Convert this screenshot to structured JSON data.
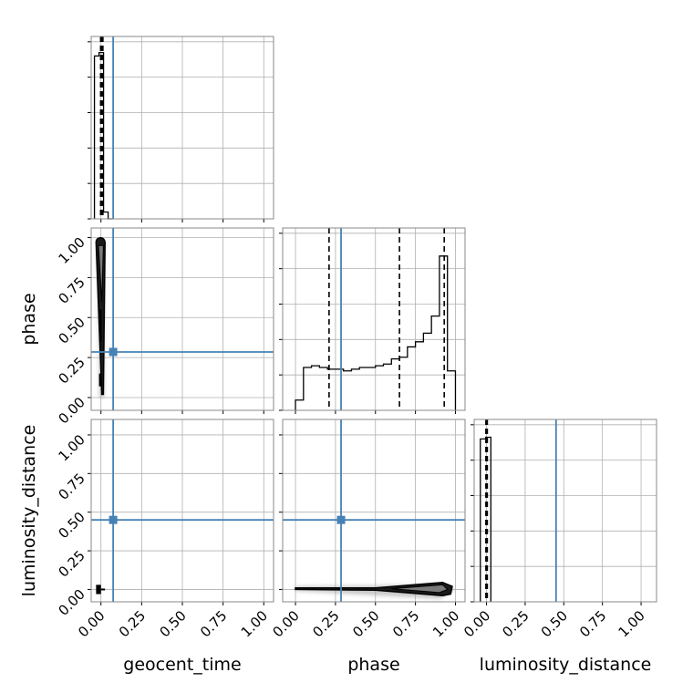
{
  "chart_data": {
    "type": "corner",
    "parameters": [
      "geocent_time",
      "phase",
      "luminosity_distance"
    ],
    "axis_labels": {
      "geocent_time": "geocent_time",
      "phase": "phase",
      "luminosity_distance": "luminosity_distance"
    },
    "ticks": [
      0.0,
      0.25,
      0.5,
      0.75,
      1.0
    ],
    "tick_labels": [
      "0.00",
      "0.25",
      "0.50",
      "0.75",
      "1.00"
    ],
    "range": {
      "geocent_time": [
        -0.06,
        1.06
      ],
      "phase": [
        -0.08,
        1.06
      ],
      "luminosity_distance": [
        -0.08,
        1.1
      ]
    },
    "grid": true,
    "truth_color": "#4682b4",
    "truths": {
      "geocent_time": 0.075,
      "phase": 0.285,
      "luminosity_distance": 0.45
    },
    "histograms": {
      "geocent_time": {
        "edges": [
          -0.04,
          -0.012,
          0.016,
          0.044,
          0.072
        ],
        "counts": [
          0.95,
          0.97,
          0.04,
          0.0
        ],
        "quantiles": [
          -0.002,
          0.005,
          0.012
        ]
      },
      "phase": {
        "edges": [
          0.0,
          0.05,
          0.1,
          0.15,
          0.2,
          0.25,
          0.3,
          0.35,
          0.4,
          0.45,
          0.5,
          0.55,
          0.6,
          0.65,
          0.7,
          0.75,
          0.8,
          0.85,
          0.9,
          0.95,
          1.0
        ],
        "counts": [
          0.06,
          0.25,
          0.26,
          0.25,
          0.24,
          0.24,
          0.23,
          0.24,
          0.25,
          0.25,
          0.26,
          0.27,
          0.3,
          0.31,
          0.37,
          0.4,
          0.45,
          0.55,
          0.9,
          0.23
        ],
        "quantiles": [
          0.21,
          0.65,
          0.93
        ]
      },
      "luminosity_distance": {
        "edges": [
          -0.04,
          -0.006,
          0.028
        ],
        "counts": [
          0.95,
          0.96
        ],
        "quantiles": [
          -0.004,
          0.0,
          0.005
        ]
      }
    }
  }
}
